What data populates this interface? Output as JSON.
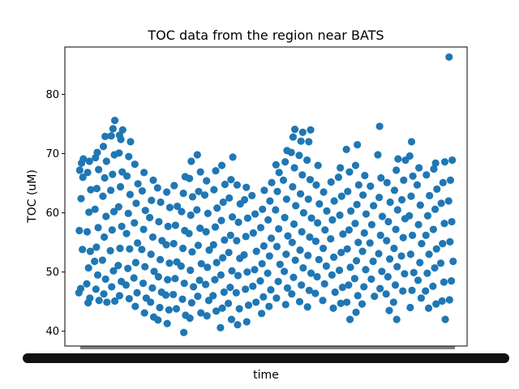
{
  "chart_data": {
    "type": "scatter",
    "title": "TOC data from the region near BATS",
    "xlabel": "time",
    "ylabel": "TOC (uM)",
    "ylim": [
      37.5,
      88.0
    ],
    "yticks": [
      40,
      50,
      60,
      70,
      80
    ],
    "xticks_note": "dense overlapping date tick labels (illegible)",
    "grid": false,
    "legend": "none",
    "marker_color": "#1f77b4",
    "series": [
      {
        "values": [
          46.5,
          47.2,
          53.8,
          57.0,
          62.4,
          66.0,
          67.2,
          68.4,
          69.1,
          44.8,
          45.6,
          48.0,
          50.7,
          53.5,
          56.8,
          60.1,
          63.9,
          66.8,
          68.7,
          45.2,
          47.1,
          49.5,
          51.8,
          54.2,
          57.5,
          60.6,
          64.1,
          67.3,
          69.3,
          70.2,
          44.9,
          46.3,
          48.8,
          52.0,
          55.9,
          59.4,
          62.8,
          65.9,
          68.7,
          71.2,
          72.9,
          45.1,
          47.5,
          50.2,
          53.6,
          57.1,
          60.2,
          63.8,
          66.5,
          69.8,
          73.0,
          74.2,
          75.6,
          46.0,
          48.4,
          51.1,
          54.0,
          57.7,
          61.0,
          64.4,
          66.9,
          70.1,
          72.4,
          74.0,
          73.1,
          45.5,
          47.8,
          50.6,
          53.9,
          56.5,
          59.9,
          63.1,
          66.2,
          69.5,
          72.0,
          44.2,
          46.5,
          49.0,
          51.6,
          54.9,
          58.3,
          61.6,
          64.9,
          68.2,
          43.1,
          45.6,
          48.1,
          50.9,
          53.8,
          57.2,
          60.4,
          63.7,
          66.8,
          42.4,
          44.9,
          47.3,
          50.1,
          53.0,
          55.9,
          59.2,
          62.1,
          65.5,
          41.9,
          44.0,
          46.6,
          49.2,
          52.1,
          55.3,
          58.5,
          61.8,
          64.2,
          41.3,
          43.6,
          46.1,
          48.7,
          51.5,
          54.6,
          57.7,
          60.9,
          63.5,
          43.8,
          46.2,
          48.9,
          51.7,
          54.8,
          57.9,
          61.1,
          64.6,
          39.8,
          42.7,
          45.4,
          48.1,
          51.0,
          54.0,
          57.0,
          60.2,
          63.3,
          66.1,
          42.2,
          44.8,
          47.5,
          50.3,
          53.4,
          56.5,
          59.6,
          62.7,
          65.8,
          68.7,
          43.1,
          45.9,
          48.6,
          51.4,
          54.5,
          57.4,
          60.5,
          63.6,
          66.9,
          69.8,
          42.6,
          45.2,
          47.9,
          50.8,
          53.7,
          56.8,
          59.9,
          63.0,
          65.4,
          43.4,
          46.0,
          48.7,
          51.6,
          54.6,
          57.6,
          60.8,
          63.9,
          67.1,
          40.6,
          43.9,
          46.6,
          49.5,
          52.4,
          55.4,
          58.7,
          61.8,
          64.8,
          68.0,
          42.0,
          44.7,
          47.4,
          50.2,
          53.3,
          56.2,
          59.3,
          62.5,
          65.6,
          69.4,
          41.1,
          43.8,
          46.5,
          49.4,
          52.3,
          55.3,
          58.4,
          61.5,
          64.7,
          41.6,
          44.4,
          47.1,
          50.0,
          52.9,
          56.0,
          59.1,
          62.2,
          64.3,
          44.9,
          47.6,
          50.4,
          53.5,
          56.6,
          59.8,
          62.9,
          43.0,
          45.8,
          48.5,
          51.4,
          54.4,
          57.5,
          60.6,
          63.8,
          44.2,
          47.0,
          49.8,
          52.7,
          55.7,
          58.8,
          62.0,
          65.1,
          45.6,
          48.4,
          51.3,
          54.3,
          57.3,
          60.5,
          63.6,
          66.8,
          68.1,
          44.5,
          47.3,
          50.1,
          53.0,
          56.1,
          59.2,
          62.3,
          65.5,
          68.6,
          70.5,
          46.3,
          49.1,
          52.0,
          55.0,
          58.1,
          61.2,
          64.4,
          67.6,
          70.2,
          72.8,
          74.1,
          45.0,
          47.8,
          50.7,
          53.7,
          56.8,
          60.0,
          63.2,
          66.4,
          69.7,
          72.1,
          73.6,
          44.1,
          46.9,
          49.8,
          52.8,
          55.9,
          59.1,
          62.3,
          65.6,
          68.9,
          72.0,
          74.0,
          46.4,
          49.2,
          52.1,
          55.2,
          58.3,
          61.5,
          64.7,
          68.0,
          45.2,
          48.0,
          51.0,
          54.0,
          57.1,
          60.3,
          63.5,
          43.9,
          46.6,
          49.5,
          52.5,
          55.6,
          58.8,
          62.0,
          65.2,
          44.7,
          47.4,
          50.3,
          53.3,
          56.4,
          59.6,
          62.8,
          66.0,
          67.6,
          42.0,
          44.9,
          47.8,
          50.8,
          53.9,
          57.1,
          60.3,
          63.6,
          66.9,
          70.7,
          43.2,
          46.0,
          48.9,
          51.9,
          55.0,
          58.2,
          61.4,
          64.7,
          68.0,
          71.5,
          44.6,
          47.5,
          50.4,
          53.5,
          56.6,
          59.8,
          63.0,
          66.3,
          45.9,
          48.8,
          51.8,
          54.9,
          58.0,
          61.2,
          64.5,
          47.2,
          50.1,
          53.1,
          56.2,
          59.4,
          62.6,
          65.9,
          69.8,
          74.6,
          43.5,
          46.3,
          49.2,
          52.2,
          55.3,
          58.5,
          61.8,
          65.1,
          42.0,
          44.9,
          47.8,
          50.9,
          54.0,
          57.2,
          60.5,
          63.8,
          67.2,
          69.1,
          46.8,
          49.7,
          52.7,
          55.8,
          59.0,
          62.2,
          65.5,
          68.9,
          44.0,
          46.9,
          49.9,
          53.0,
          56.2,
          59.5,
          62.8,
          66.2,
          69.6,
          72.0,
          45.6,
          48.6,
          51.6,
          54.8,
          58.0,
          61.3,
          64.7,
          67.6,
          43.9,
          46.8,
          49.8,
          53.0,
          56.2,
          59.5,
          62.9,
          66.4,
          44.6,
          47.6,
          50.7,
          53.9,
          57.2,
          60.6,
          64.0,
          67.4,
          68.4,
          42.0,
          45.1,
          48.3,
          51.5,
          54.8,
          58.2,
          61.6,
          65.1,
          68.6,
          45.3,
          48.5,
          51.8,
          55.1,
          58.5,
          62.0,
          65.5,
          68.9,
          86.3
        ],
        "x_index": [
          0,
          0,
          0,
          0,
          0,
          0,
          0,
          0,
          0,
          1,
          1,
          1,
          1,
          1,
          1,
          1,
          1,
          1,
          1,
          2,
          2,
          2,
          2,
          2,
          2,
          2,
          2,
          2,
          2,
          2,
          3,
          3,
          3,
          3,
          3,
          3,
          3,
          3,
          3,
          3,
          3,
          4,
          4,
          4,
          4,
          4,
          4,
          4,
          4,
          4,
          4,
          4,
          4,
          5,
          5,
          5,
          5,
          5,
          5,
          5,
          5,
          5,
          5,
          5,
          5,
          6,
          6,
          6,
          6,
          6,
          6,
          6,
          6,
          6,
          6,
          7,
          7,
          7,
          7,
          7,
          7,
          7,
          7,
          7,
          8,
          8,
          8,
          8,
          8,
          8,
          8,
          8,
          8,
          9,
          9,
          9,
          9,
          9,
          9,
          9,
          9,
          9,
          10,
          10,
          10,
          10,
          10,
          10,
          10,
          10,
          10,
          11,
          11,
          11,
          11,
          11,
          11,
          11,
          11,
          11,
          12,
          12,
          12,
          12,
          12,
          12,
          12,
          12,
          13,
          13,
          13,
          13,
          13,
          13,
          13,
          13,
          13,
          13,
          14,
          14,
          14,
          14,
          14,
          14,
          14,
          14,
          14,
          14,
          15,
          15,
          15,
          15,
          15,
          15,
          15,
          15,
          15,
          15,
          16,
          16,
          16,
          16,
          16,
          16,
          16,
          16,
          16,
          17,
          17,
          17,
          17,
          17,
          17,
          17,
          17,
          17,
          18,
          18,
          18,
          18,
          18,
          18,
          18,
          18,
          18,
          18,
          19,
          19,
          19,
          19,
          19,
          19,
          19,
          19,
          19,
          19,
          20,
          20,
          20,
          20,
          20,
          20,
          20,
          20,
          20,
          21,
          21,
          21,
          21,
          21,
          21,
          21,
          21,
          21,
          22,
          22,
          22,
          22,
          22,
          22,
          22,
          23,
          23,
          23,
          23,
          23,
          23,
          23,
          23,
          24,
          24,
          24,
          24,
          24,
          24,
          24,
          24,
          25,
          25,
          25,
          25,
          25,
          25,
          25,
          25,
          25,
          26,
          26,
          26,
          26,
          26,
          26,
          26,
          26,
          26,
          26,
          27,
          27,
          27,
          27,
          27,
          27,
          27,
          27,
          27,
          27,
          27,
          28,
          28,
          28,
          28,
          28,
          28,
          28,
          28,
          28,
          28,
          28,
          29,
          29,
          29,
          29,
          29,
          29,
          29,
          29,
          29,
          29,
          29,
          30,
          30,
          30,
          30,
          30,
          30,
          30,
          30,
          31,
          31,
          31,
          31,
          31,
          31,
          31,
          32,
          32,
          32,
          32,
          32,
          32,
          32,
          32,
          33,
          33,
          33,
          33,
          33,
          33,
          33,
          33,
          33,
          34,
          34,
          34,
          34,
          34,
          34,
          34,
          34,
          34,
          34,
          35,
          35,
          35,
          35,
          35,
          35,
          35,
          35,
          35,
          35,
          36,
          36,
          36,
          36,
          36,
          36,
          36,
          36,
          37,
          37,
          37,
          37,
          37,
          37,
          37,
          38,
          38,
          38,
          38,
          38,
          38,
          38,
          38,
          38,
          39,
          39,
          39,
          39,
          39,
          39,
          39,
          39,
          40,
          40,
          40,
          40,
          40,
          40,
          40,
          40,
          40,
          40,
          41,
          41,
          41,
          41,
          41,
          41,
          41,
          41,
          42,
          42,
          42,
          42,
          42,
          42,
          42,
          42,
          42,
          42,
          43,
          43,
          43,
          43,
          43,
          43,
          43,
          43,
          44,
          44,
          44,
          44,
          44,
          44,
          44,
          44,
          45,
          45,
          45,
          45,
          45,
          45,
          45,
          45,
          45,
          46,
          46,
          46,
          46,
          46,
          46,
          46,
          46,
          46,
          47,
          47,
          47,
          47,
          47,
          47,
          47,
          47,
          47
        ],
        "x_count": 48
      }
    ]
  }
}
